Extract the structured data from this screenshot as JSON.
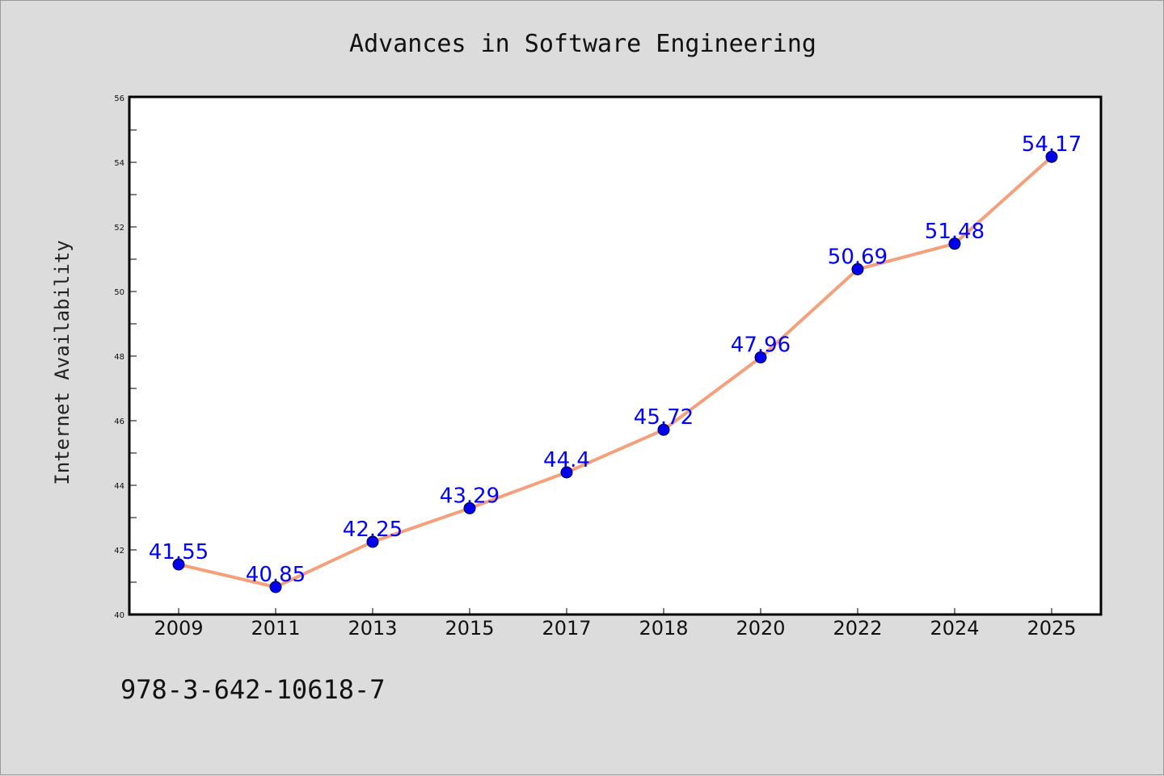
{
  "chart_data": {
    "type": "line",
    "title": "Advances in Software Engineering",
    "xlabel": "",
    "ylabel": "Internet Availability",
    "categories": [
      "2009",
      "2011",
      "2013",
      "2015",
      "2017",
      "2018",
      "2020",
      "2022",
      "2024",
      "2025"
    ],
    "series": [
      {
        "values": [
          41.55,
          40.85,
          42.25,
          43.29,
          44.4,
          45.72,
          47.96,
          50.69,
          51.48,
          54.17
        ],
        "line_color": "#f4a07c",
        "marker_color": "#0000ee"
      }
    ],
    "data_labels": [
      "41.55",
      "40.85",
      "42.25",
      "43.29",
      "44.4",
      "45.72",
      "47.96",
      "50.69",
      "51.48",
      "54.17"
    ],
    "ylim": [
      40,
      56
    ],
    "y_ticks": [
      "40",
      "42",
      "44",
      "46",
      "48",
      "50",
      "52",
      "54",
      "56"
    ],
    "grid": false,
    "legend": "none"
  },
  "annotation": "978-3-642-10618-7",
  "colors": {
    "background": "#dcdcdc",
    "plot_background": "#ffffff",
    "line": "#f4a07c",
    "marker": "#0000ee",
    "data_label": "#0000ff"
  }
}
